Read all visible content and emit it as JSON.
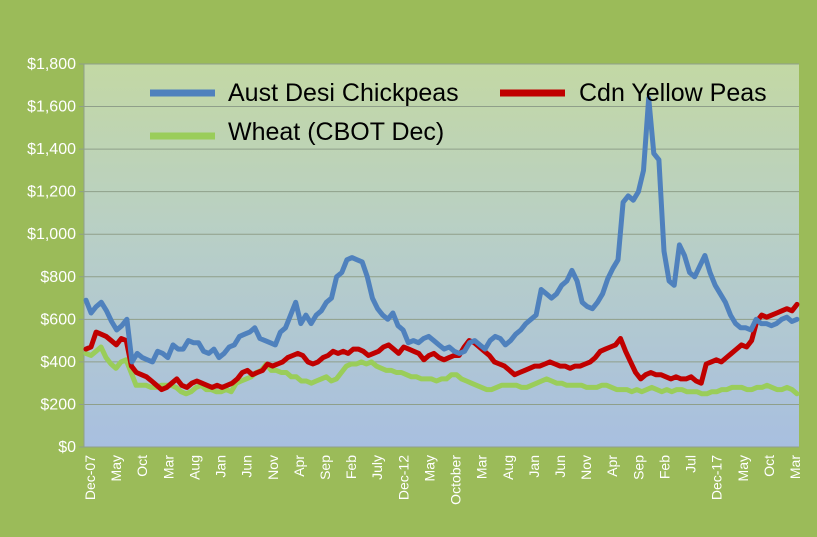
{
  "chart_data": {
    "type": "line",
    "title": "",
    "xlabel": "",
    "ylabel": "",
    "ylim": [
      0,
      1800
    ],
    "yticks": [
      "$0",
      "$200",
      "$400",
      "$600",
      "$800",
      "$1,000",
      "$1,200",
      "$1,400",
      "$1,600",
      "$1,800"
    ],
    "x_tick_labels": [
      "Dec-07",
      "May",
      "Oct",
      "Mar",
      "Aug",
      "Jan",
      "Jun",
      "Nov",
      "Apr",
      "Sep",
      "Feb",
      "July",
      "Dec-12",
      "May",
      "October",
      "Mar",
      "Aug",
      "Jan",
      "Jun",
      "Nov",
      "Apr",
      "Sep",
      "Feb",
      "Jul",
      "Dec-17",
      "May",
      "Oct",
      "Mar"
    ],
    "grid": true,
    "legend_position": "top",
    "series": [
      {
        "name": "Aust Desi Chickpeas",
        "color": "#4f81bd",
        "values": [
          690,
          630,
          660,
          680,
          640,
          590,
          550,
          570,
          600,
          400,
          440,
          420,
          410,
          400,
          450,
          440,
          420,
          480,
          460,
          460,
          500,
          490,
          490,
          450,
          440,
          460,
          420,
          440,
          470,
          480,
          520,
          530,
          540,
          560,
          510,
          500,
          490,
          480,
          540,
          560,
          620,
          680,
          580,
          620,
          580,
          620,
          640,
          680,
          700,
          800,
          820,
          880,
          890,
          880,
          870,
          800,
          700,
          650,
          620,
          600,
          630,
          570,
          550,
          490,
          500,
          490,
          510,
          520,
          500,
          480,
          460,
          470,
          450,
          440,
          450,
          490,
          500,
          480,
          460,
          500,
          520,
          510,
          480,
          500,
          530,
          550,
          580,
          600,
          620,
          740,
          720,
          700,
          720,
          760,
          780,
          830,
          780,
          680,
          660,
          650,
          680,
          720,
          790,
          840,
          880,
          1150,
          1180,
          1160,
          1200,
          1300,
          1640,
          1380,
          1350,
          920,
          780,
          760,
          950,
          900,
          820,
          800,
          850,
          900,
          820,
          760,
          720,
          680,
          620,
          580,
          560,
          560,
          550,
          600,
          580,
          580,
          570,
          580,
          600,
          610,
          590,
          600
        ]
      },
      {
        "name": "Cdn Yellow Peas",
        "color": "#c00000",
        "values": [
          460,
          470,
          540,
          530,
          520,
          500,
          480,
          510,
          500,
          380,
          350,
          340,
          330,
          310,
          290,
          270,
          280,
          300,
          320,
          290,
          280,
          300,
          310,
          300,
          290,
          280,
          290,
          280,
          290,
          300,
          320,
          350,
          360,
          340,
          350,
          360,
          390,
          380,
          390,
          400,
          420,
          430,
          440,
          430,
          400,
          390,
          400,
          420,
          430,
          450,
          440,
          450,
          440,
          460,
          460,
          450,
          430,
          440,
          450,
          470,
          480,
          460,
          440,
          470,
          460,
          450,
          440,
          410,
          430,
          440,
          420,
          410,
          420,
          430,
          430,
          470,
          500,
          490,
          470,
          450,
          430,
          400,
          390,
          380,
          360,
          340,
          350,
          360,
          370,
          380,
          380,
          390,
          400,
          390,
          380,
          380,
          370,
          380,
          380,
          390,
          400,
          420,
          450,
          460,
          470,
          480,
          510,
          450,
          400,
          350,
          320,
          340,
          350,
          340,
          340,
          330,
          320,
          330,
          320,
          320,
          330,
          310,
          300,
          390,
          400,
          410,
          400,
          420,
          440,
          460,
          480,
          470,
          500,
          590,
          620,
          610,
          620,
          630,
          640,
          650,
          640,
          670
        ]
      },
      {
        "name": "Wheat (CBOT Dec)",
        "color": "#9acd5a",
        "values": [
          440,
          430,
          450,
          470,
          420,
          390,
          370,
          400,
          410,
          350,
          290,
          290,
          290,
          280,
          280,
          290,
          290,
          290,
          280,
          260,
          250,
          260,
          280,
          290,
          270,
          270,
          260,
          260,
          270,
          260,
          300,
          310,
          320,
          330,
          350,
          360,
          390,
          360,
          360,
          350,
          350,
          330,
          330,
          310,
          310,
          300,
          310,
          320,
          330,
          310,
          320,
          350,
          380,
          390,
          390,
          400,
          390,
          400,
          380,
          370,
          360,
          360,
          350,
          350,
          340,
          330,
          330,
          320,
          320,
          320,
          310,
          320,
          320,
          340,
          340,
          320,
          310,
          300,
          290,
          280,
          270,
          270,
          280,
          290,
          290,
          290,
          290,
          280,
          280,
          290,
          300,
          310,
          320,
          310,
          300,
          300,
          290,
          290,
          290,
          290,
          280,
          280,
          280,
          290,
          290,
          280,
          270,
          270,
          270,
          260,
          270,
          260,
          270,
          280,
          270,
          260,
          270,
          260,
          270,
          270,
          260,
          260,
          260,
          250,
          250,
          260,
          260,
          270,
          270,
          280,
          280,
          280,
          270,
          270,
          280,
          280,
          290,
          280,
          270,
          270,
          280,
          270,
          250
        ]
      }
    ]
  }
}
